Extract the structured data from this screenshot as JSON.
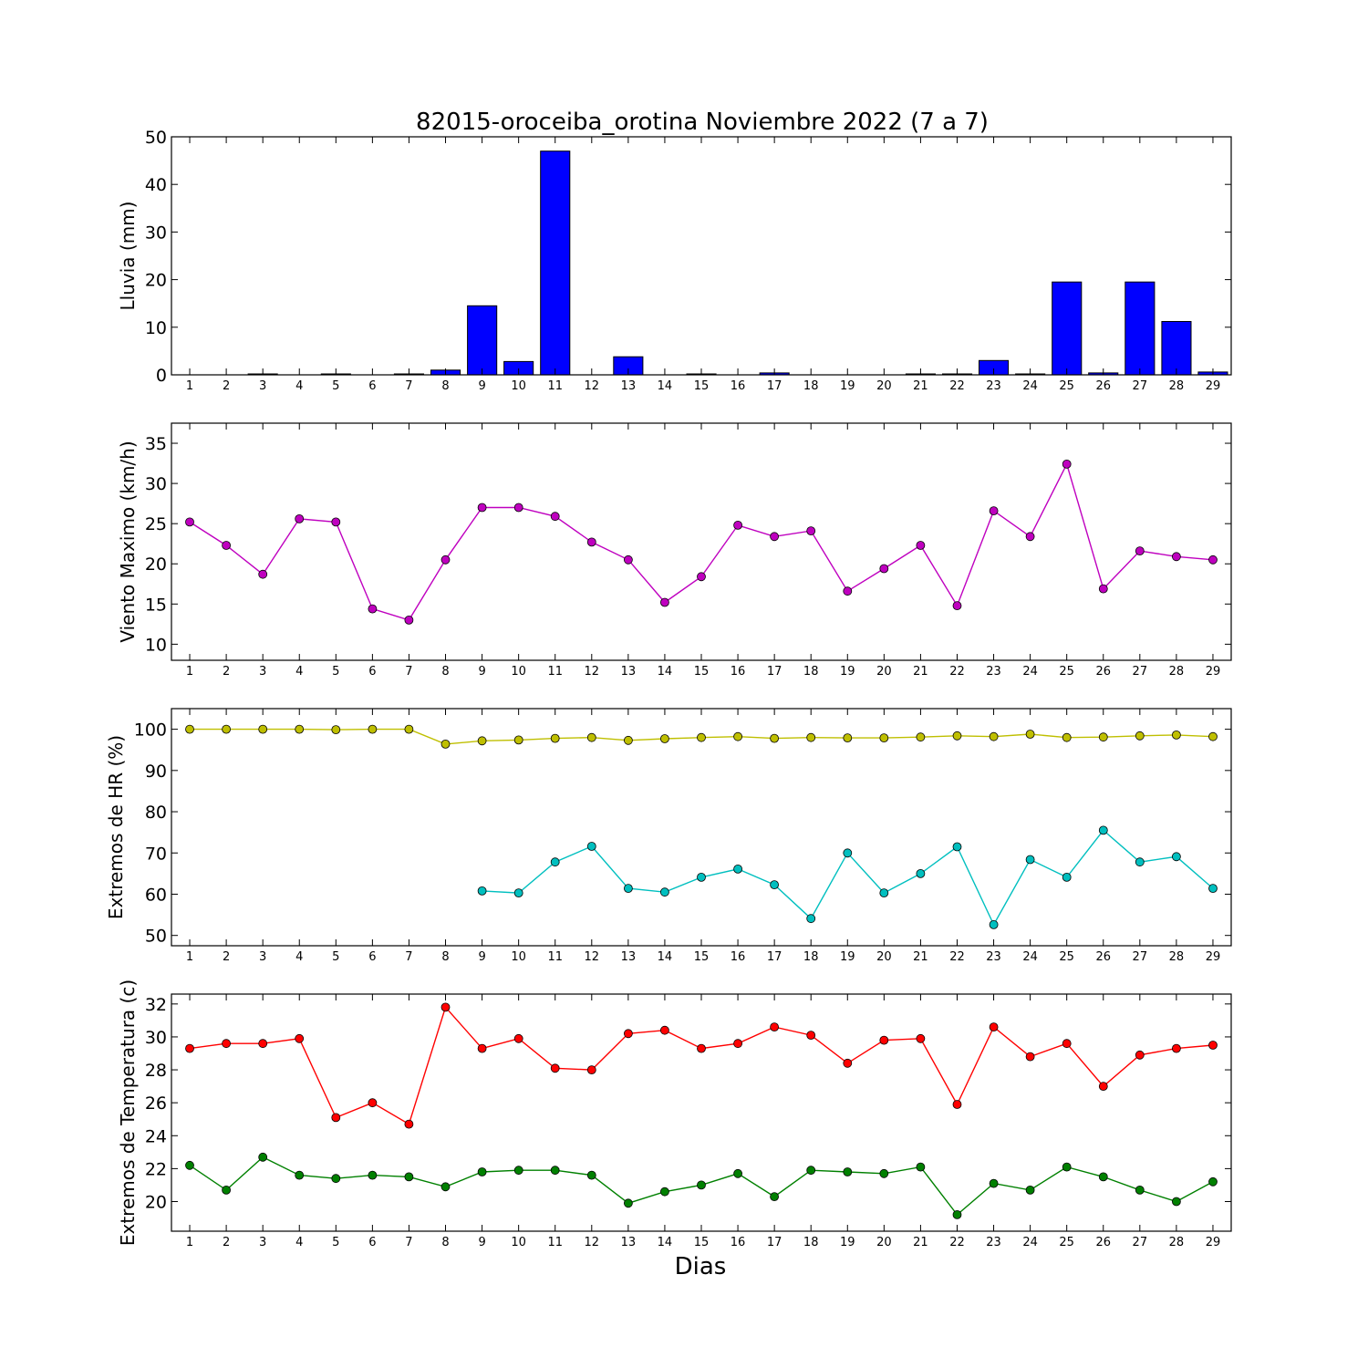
{
  "chart": {
    "title": "82015-oroceiba_orotina Noviembre 2022  (7 a 7)",
    "xlabel": "Dias"
  },
  "chart_data": [
    {
      "type": "bar",
      "ylabel": "Lluvia (mm)",
      "ylim": [
        0,
        50
      ],
      "yticks": [
        0,
        10,
        20,
        30,
        40,
        50
      ],
      "x": [
        1,
        2,
        3,
        4,
        5,
        6,
        7,
        8,
        9,
        10,
        11,
        12,
        13,
        14,
        15,
        16,
        17,
        18,
        19,
        20,
        21,
        22,
        23,
        24,
        25,
        26,
        27,
        28,
        29
      ],
      "series": [
        {
          "color": "#0000ff",
          "values": [
            0.0,
            0.0,
            0.2,
            0.0,
            0.2,
            0.0,
            0.2,
            1.0,
            14.5,
            2.8,
            47.0,
            0.0,
            3.8,
            0.0,
            0.2,
            0.0,
            0.4,
            0.0,
            0.0,
            0.0,
            0.2,
            0.2,
            3.0,
            0.2,
            19.5,
            0.4,
            19.5,
            11.2,
            0.6
          ]
        }
      ]
    },
    {
      "type": "line",
      "ylabel": "Viento Maximo (km/h)",
      "ylim": [
        8,
        37.5
      ],
      "yticks": [
        10,
        15,
        20,
        25,
        30,
        35
      ],
      "x": [
        1,
        2,
        3,
        4,
        5,
        6,
        7,
        8,
        9,
        10,
        11,
        12,
        13,
        14,
        15,
        16,
        17,
        18,
        19,
        20,
        21,
        22,
        23,
        24,
        25,
        26,
        27,
        28,
        29
      ],
      "series": [
        {
          "color": "#bf00bf",
          "values": [
            25.2,
            22.3,
            18.7,
            25.6,
            25.2,
            14.4,
            13.0,
            20.5,
            27.0,
            27.0,
            25.9,
            22.7,
            20.5,
            15.2,
            18.4,
            24.8,
            23.4,
            24.1,
            16.6,
            19.4,
            22.3,
            14.8,
            26.6,
            23.4,
            32.4,
            16.9,
            21.6,
            20.9,
            20.5
          ]
        }
      ]
    },
    {
      "type": "line",
      "ylabel": "Extremos de HR (%)",
      "ylim": [
        47.5,
        105
      ],
      "yticks": [
        50,
        60,
        70,
        80,
        90,
        100
      ],
      "x": [
        1,
        2,
        3,
        4,
        5,
        6,
        7,
        8,
        9,
        10,
        11,
        12,
        13,
        14,
        15,
        16,
        17,
        18,
        19,
        20,
        21,
        22,
        23,
        24,
        25,
        26,
        27,
        28,
        29
      ],
      "series": [
        {
          "color": "#bfbf00",
          "values": [
            100,
            100,
            100,
            100,
            99.9,
            100,
            100,
            96.4,
            97.2,
            97.4,
            97.8,
            98,
            97.3,
            97.7,
            98,
            98.2,
            97.8,
            98,
            97.9,
            97.9,
            98.1,
            98.4,
            98.2,
            98.8,
            98,
            98.1,
            98.4,
            98.6,
            98.2
          ]
        },
        {
          "color": "#00bfbf",
          "values": [
            null,
            null,
            null,
            null,
            null,
            null,
            null,
            null,
            60.8,
            60.3,
            67.8,
            71.6,
            61.4,
            60.5,
            64.1,
            66.1,
            62.3,
            54.1,
            70.0,
            60.3,
            65.0,
            71.5,
            52.6,
            68.4,
            64.1,
            75.5,
            67.8,
            69.1,
            61.4
          ]
        }
      ]
    },
    {
      "type": "line",
      "ylabel": "Extremos de Temperatura (c)",
      "ylim": [
        18.2,
        32.6
      ],
      "yticks": [
        20,
        22,
        24,
        26,
        28,
        30,
        32
      ],
      "x": [
        1,
        2,
        3,
        4,
        5,
        6,
        7,
        8,
        9,
        10,
        11,
        12,
        13,
        14,
        15,
        16,
        17,
        18,
        19,
        20,
        21,
        22,
        23,
        24,
        25,
        26,
        27,
        28,
        29
      ],
      "series": [
        {
          "color": "#ff0000",
          "values": [
            29.3,
            29.6,
            29.6,
            29.9,
            25.1,
            26.0,
            24.7,
            31.8,
            29.3,
            29.9,
            28.1,
            28.0,
            30.2,
            30.4,
            29.3,
            29.6,
            30.6,
            30.1,
            28.4,
            29.8,
            29.9,
            25.9,
            30.6,
            28.8,
            29.6,
            27.0,
            28.9,
            29.3,
            29.5
          ]
        },
        {
          "color": "#008000",
          "values": [
            22.2,
            20.7,
            22.7,
            21.6,
            21.4,
            21.6,
            21.5,
            20.9,
            21.8,
            21.9,
            21.9,
            21.6,
            19.9,
            20.6,
            21.0,
            21.7,
            20.3,
            21.9,
            21.8,
            21.7,
            22.1,
            19.2,
            21.1,
            20.7,
            22.1,
            21.5,
            20.7,
            20.0,
            21.2
          ]
        }
      ]
    }
  ]
}
